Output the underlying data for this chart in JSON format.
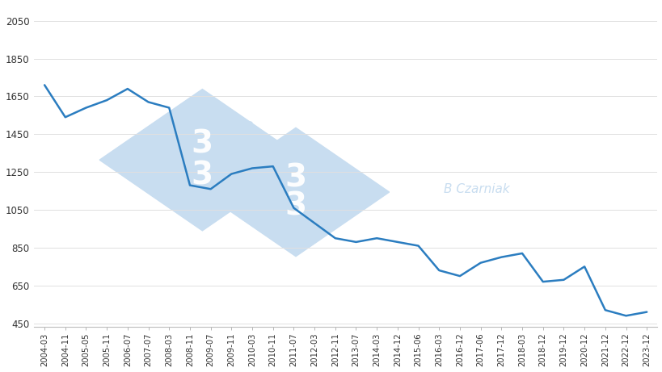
{
  "x_labels": [
    "2004-03",
    "2004-11",
    "2005-05",
    "2005-11",
    "2006-07",
    "2007-07",
    "2008-03",
    "2008-11",
    "2009-07",
    "2009-11",
    "2010-03",
    "2010-11",
    "2011-07",
    "2012-03",
    "2012-11",
    "2013-07",
    "2014-03",
    "2014-12",
    "2015-06",
    "2016-03",
    "2016-12",
    "2017-06",
    "2017-12",
    "2018-03",
    "2018-12",
    "2019-12",
    "2020-12",
    "2021-12",
    "2022-12",
    "2023-12"
  ],
  "values": [
    1710,
    1540,
    1590,
    1630,
    1690,
    1620,
    1590,
    1180,
    1160,
    1240,
    1270,
    1280,
    1060,
    980,
    900,
    880,
    900,
    880,
    860,
    730,
    700,
    770,
    800,
    820,
    670,
    680,
    750,
    520,
    490,
    510
  ],
  "line_color": "#2B7DC0",
  "background_color": "#ffffff",
  "ylabel_ticks": [
    450,
    650,
    850,
    1050,
    1250,
    1450,
    1650,
    1850,
    2050
  ],
  "ylim": [
    430,
    2130
  ],
  "watermark_text": "B Czarniak",
  "watermark_color": "#c8ddf0",
  "grid_color": "#e0e0e0"
}
